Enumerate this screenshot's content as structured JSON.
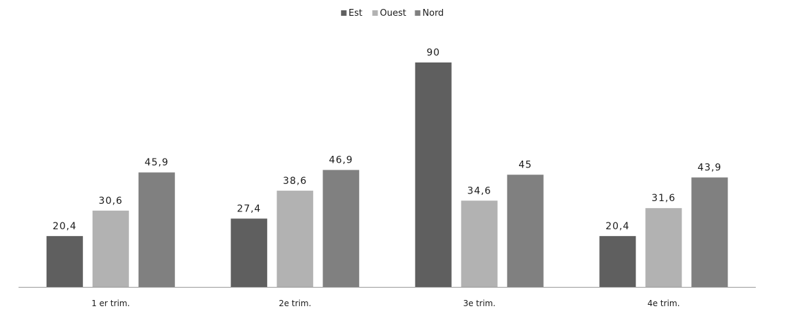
{
  "chart_data": {
    "type": "bar",
    "title": "",
    "xlabel": "",
    "ylabel": "",
    "categories": [
      "1 er trim.",
      "2e trim.",
      "3e trim.",
      "4e trim."
    ],
    "series": [
      {
        "name": "Est",
        "color": "#5f5f5f",
        "values": [
          20.4,
          27.4,
          90,
          20.4
        ],
        "labels": [
          "20,4",
          "27,4",
          "90",
          "20,4"
        ]
      },
      {
        "name": "Ouest",
        "color": "#b2b2b2",
        "values": [
          30.6,
          38.6,
          34.6,
          31.6
        ],
        "labels": [
          "30,6",
          "38,6",
          "34,6",
          "31,6"
        ]
      },
      {
        "name": "Nord",
        "color": "#808080",
        "values": [
          45.9,
          46.9,
          45,
          43.9
        ],
        "labels": [
          "45,9",
          "46,9",
          "45",
          "43,9"
        ]
      }
    ],
    "ylim": [
      0,
      90
    ],
    "grid": false,
    "legend_position": "top-center",
    "value_axis_visible": false
  }
}
